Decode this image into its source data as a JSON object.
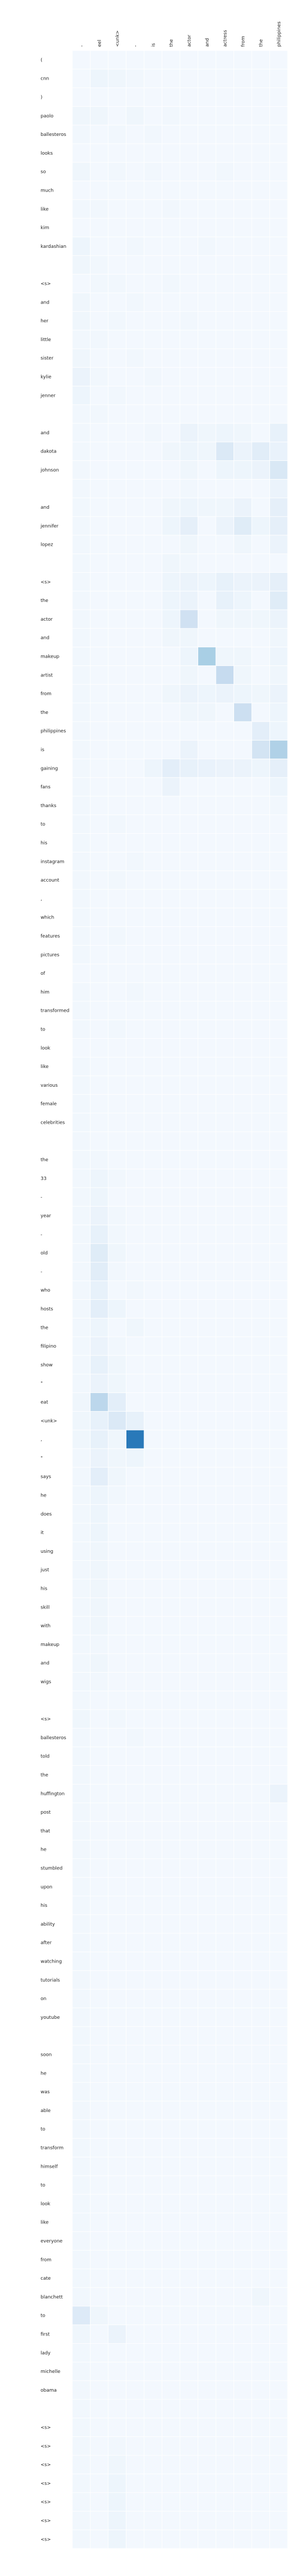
{
  "chart_data": {
    "type": "heatmap",
    "title": "",
    "xlabel": "",
    "ylabel": "",
    "x": [
      "-",
      "eel",
      "<unk>",
      "-",
      "is",
      "the",
      "actor",
      "and",
      "actress",
      "from",
      "the",
      "philippines"
    ],
    "y": [
      "(",
      "cnn",
      ")",
      "paolo",
      "ballesteros",
      "looks",
      "so",
      "much",
      "like",
      "kim",
      "kardashian",
      "",
      "<s>",
      "and",
      "her",
      "little",
      "sister",
      "kylie",
      "jenner",
      "",
      "and",
      "dakota",
      "johnson",
      "",
      "and",
      "jennifer",
      "lopez",
      "",
      "<s>",
      "the",
      "actor",
      "and",
      "makeup",
      "artist",
      "from",
      "the",
      "philippines",
      "is",
      "gaining",
      "fans",
      "thanks",
      "to",
      "his",
      "instagram",
      "account",
      ",",
      "which",
      "features",
      "pictures",
      "of",
      "him",
      "transformed",
      "to",
      "look",
      "like",
      "various",
      "female",
      "celebrities",
      "",
      "the",
      "33",
      "-",
      "year",
      "-",
      "old",
      "-",
      "who",
      "hosts",
      "the",
      "filipino",
      "show",
      "\"",
      "eat",
      "<unk>",
      ",",
      "\"",
      "says",
      "he",
      "does",
      "it",
      "using",
      "just",
      "his",
      "skill",
      "with",
      "makeup",
      "and",
      "wigs",
      "",
      "<s>",
      "ballesteros",
      "told",
      "the",
      "huffington",
      "post",
      "that",
      "he",
      "stumbled",
      "upon",
      "his",
      "ability",
      "after",
      "watching",
      "tutorials",
      "on",
      "youtube",
      "",
      "soon",
      "he",
      "was",
      "able",
      "to",
      "transform",
      "himself",
      "to",
      "look",
      "like",
      "everyone",
      "from",
      "cate",
      "blanchett",
      "to",
      "first",
      "lady",
      "michelle",
      "obama",
      "",
      "<s>",
      "<s>",
      "<s>",
      "<s>",
      "<s>",
      "<s>",
      "<s>"
    ],
    "cells": [
      [
        1,
        1,
        0.05
      ],
      [
        1,
        2,
        0.04
      ],
      [
        1,
        3,
        0.03
      ],
      [
        3,
        0,
        0.04
      ],
      [
        3,
        1,
        0.04
      ],
      [
        3,
        3,
        0.04
      ],
      [
        3,
        5,
        0.03
      ],
      [
        4,
        0,
        0.03
      ],
      [
        4,
        2,
        0.03
      ],
      [
        4,
        4,
        0.03
      ],
      [
        6,
        0,
        0.04
      ],
      [
        6,
        2,
        0.03
      ],
      [
        6,
        4,
        0.03
      ],
      [
        6,
        8,
        0.03
      ],
      [
        8,
        0,
        0.03
      ],
      [
        8,
        1,
        0.03
      ],
      [
        8,
        5,
        0.03
      ],
      [
        10,
        0,
        0.05
      ],
      [
        10,
        3,
        0.03
      ],
      [
        10,
        7,
        0.03
      ],
      [
        11,
        0,
        0.04
      ],
      [
        11,
        1,
        0.03
      ],
      [
        12,
        1,
        0.03
      ],
      [
        12,
        2,
        0.03
      ],
      [
        12,
        5,
        0.03
      ],
      [
        13,
        0,
        0.04
      ],
      [
        13,
        3,
        0.03
      ],
      [
        14,
        0,
        0.04
      ],
      [
        14,
        2,
        0.03
      ],
      [
        14,
        6,
        0.03
      ],
      [
        15,
        0,
        0.03
      ],
      [
        15,
        1,
        0.03
      ],
      [
        16,
        0,
        0.04
      ],
      [
        16,
        3,
        0.03
      ],
      [
        17,
        0,
        0.06
      ],
      [
        17,
        1,
        0.03
      ],
      [
        17,
        4,
        0.03
      ],
      [
        18,
        0,
        0.05
      ],
      [
        18,
        2,
        0.03
      ],
      [
        19,
        0,
        0.03
      ],
      [
        19,
        1,
        0.03
      ],
      [
        20,
        0,
        0.03
      ],
      [
        20,
        4,
        0.03
      ],
      [
        20,
        6,
        0.06
      ],
      [
        20,
        7,
        0.04
      ],
      [
        20,
        8,
        0.05
      ],
      [
        20,
        9,
        0.04
      ],
      [
        20,
        11,
        0.08
      ],
      [
        21,
        0,
        0.03
      ],
      [
        21,
        5,
        0.04
      ],
      [
        21,
        6,
        0.05
      ],
      [
        21,
        7,
        0.04
      ],
      [
        21,
        8,
        0.14
      ],
      [
        21,
        9,
        0.06
      ],
      [
        21,
        10,
        0.11
      ],
      [
        21,
        11,
        0.07
      ],
      [
        22,
        0,
        0.03
      ],
      [
        22,
        6,
        0.04
      ],
      [
        22,
        8,
        0.05
      ],
      [
        22,
        9,
        0.05
      ],
      [
        22,
        10,
        0.06
      ],
      [
        22,
        11,
        0.15
      ],
      [
        23,
        0,
        0.03
      ],
      [
        23,
        6,
        0.03
      ],
      [
        23,
        11,
        0.06
      ],
      [
        24,
        0,
        0.03
      ],
      [
        24,
        5,
        0.04
      ],
      [
        24,
        6,
        0.05
      ],
      [
        24,
        7,
        0.04
      ],
      [
        24,
        8,
        0.04
      ],
      [
        24,
        9,
        0.06
      ],
      [
        24,
        11,
        0.09
      ],
      [
        25,
        0,
        0.03
      ],
      [
        25,
        5,
        0.05
      ],
      [
        25,
        6,
        0.09
      ],
      [
        25,
        8,
        0.06
      ],
      [
        25,
        9,
        0.12
      ],
      [
        25,
        10,
        0.05
      ],
      [
        25,
        11,
        0.09
      ],
      [
        26,
        0,
        0.03
      ],
      [
        26,
        6,
        0.04
      ],
      [
        26,
        9,
        0.04
      ],
      [
        26,
        11,
        0.06
      ],
      [
        27,
        0,
        0.03
      ],
      [
        27,
        5,
        0.04
      ],
      [
        27,
        6,
        0.03
      ],
      [
        28,
        0,
        0.03
      ],
      [
        28,
        5,
        0.05
      ],
      [
        28,
        6,
        0.06
      ],
      [
        28,
        7,
        0.05
      ],
      [
        28,
        8,
        0.08
      ],
      [
        28,
        9,
        0.06
      ],
      [
        28,
        10,
        0.06
      ],
      [
        28,
        11,
        0.09
      ],
      [
        29,
        0,
        0.03
      ],
      [
        29,
        5,
        0.05
      ],
      [
        29,
        6,
        0.06
      ],
      [
        29,
        8,
        0.08
      ],
      [
        29,
        9,
        0.05
      ],
      [
        29,
        11,
        0.12
      ],
      [
        30,
        0,
        0.03
      ],
      [
        30,
        5,
        0.05
      ],
      [
        30,
        6,
        0.2
      ],
      [
        30,
        8,
        0.04
      ],
      [
        30,
        9,
        0.04
      ],
      [
        30,
        10,
        0.04
      ],
      [
        30,
        11,
        0.06
      ],
      [
        31,
        0,
        0.03
      ],
      [
        31,
        5,
        0.04
      ],
      [
        31,
        6,
        0.04
      ],
      [
        31,
        11,
        0.04
      ],
      [
        32,
        0,
        0.03
      ],
      [
        32,
        6,
        0.05
      ],
      [
        32,
        7,
        0.34
      ],
      [
        32,
        8,
        0.04
      ],
      [
        32,
        9,
        0.04
      ],
      [
        32,
        11,
        0.05
      ],
      [
        33,
        0,
        0.03
      ],
      [
        33,
        6,
        0.04
      ],
      [
        33,
        8,
        0.25
      ],
      [
        33,
        9,
        0.04
      ],
      [
        33,
        11,
        0.04
      ],
      [
        34,
        0,
        0.03
      ],
      [
        34,
        5,
        0.04
      ],
      [
        34,
        6,
        0.06
      ],
      [
        34,
        7,
        0.05
      ],
      [
        34,
        8,
        0.06
      ],
      [
        34,
        9,
        0.05
      ],
      [
        34,
        10,
        0.04
      ],
      [
        34,
        11,
        0.06
      ],
      [
        35,
        0,
        0.03
      ],
      [
        35,
        6,
        0.04
      ],
      [
        35,
        7,
        0.04
      ],
      [
        35,
        9,
        0.22
      ],
      [
        35,
        11,
        0.05
      ],
      [
        36,
        0,
        0.03
      ],
      [
        36,
        10,
        0.1
      ],
      [
        36,
        11,
        0.05
      ],
      [
        37,
        0,
        0.03
      ],
      [
        37,
        6,
        0.06
      ],
      [
        37,
        10,
        0.18
      ],
      [
        37,
        11,
        0.32
      ],
      [
        38,
        0,
        0.03
      ],
      [
        38,
        4,
        0.05
      ],
      [
        38,
        5,
        0.1
      ],
      [
        38,
        6,
        0.08
      ],
      [
        38,
        7,
        0.07
      ],
      [
        38,
        8,
        0.06
      ],
      [
        38,
        9,
        0.06
      ],
      [
        38,
        10,
        0.05
      ],
      [
        38,
        11,
        0.09
      ],
      [
        39,
        0,
        0.03
      ],
      [
        39,
        5,
        0.06
      ],
      [
        39,
        11,
        0.05
      ],
      [
        40,
        0,
        0.03
      ],
      [
        40,
        11,
        0.03
      ],
      [
        41,
        0,
        0.03
      ],
      [
        41,
        2,
        0.03
      ],
      [
        42,
        0,
        0.03
      ],
      [
        43,
        0,
        0.03
      ],
      [
        43,
        3,
        0.03
      ],
      [
        44,
        0,
        0.03
      ],
      [
        44,
        2,
        0.03
      ],
      [
        45,
        0,
        0.03
      ],
      [
        46,
        0,
        0.03
      ],
      [
        47,
        0,
        0.03
      ],
      [
        47,
        2,
        0.03
      ],
      [
        48,
        0,
        0.03
      ],
      [
        50,
        0,
        0.03
      ],
      [
        50,
        3,
        0.03
      ],
      [
        51,
        0,
        0.03
      ],
      [
        52,
        0,
        0.03
      ],
      [
        52,
        2,
        0.03
      ],
      [
        54,
        0,
        0.03
      ],
      [
        55,
        0,
        0.03
      ],
      [
        56,
        0,
        0.03
      ],
      [
        57,
        0,
        0.03
      ],
      [
        58,
        0,
        0.03
      ],
      [
        59,
        0,
        0.03
      ],
      [
        59,
        1,
        0.03
      ],
      [
        60,
        0,
        0.03
      ],
      [
        60,
        1,
        0.05
      ],
      [
        60,
        2,
        0.03
      ],
      [
        61,
        0,
        0.03
      ],
      [
        61,
        1,
        0.05
      ],
      [
        62,
        0,
        0.03
      ],
      [
        62,
        1,
        0.06
      ],
      [
        62,
        2,
        0.03
      ],
      [
        63,
        0,
        0.03
      ],
      [
        63,
        1,
        0.08
      ],
      [
        63,
        2,
        0.03
      ],
      [
        64,
        0,
        0.03
      ],
      [
        64,
        1,
        0.12
      ],
      [
        64,
        2,
        0.04
      ],
      [
        65,
        0,
        0.03
      ],
      [
        65,
        1,
        0.11
      ],
      [
        65,
        2,
        0.03
      ],
      [
        66,
        0,
        0.03
      ],
      [
        66,
        1,
        0.08
      ],
      [
        66,
        3,
        0.03
      ],
      [
        67,
        0,
        0.03
      ],
      [
        67,
        1,
        0.1
      ],
      [
        67,
        2,
        0.05
      ],
      [
        68,
        0,
        0.03
      ],
      [
        68,
        1,
        0.05
      ],
      [
        68,
        3,
        0.04
      ],
      [
        69,
        0,
        0.03
      ],
      [
        69,
        1,
        0.06
      ],
      [
        69,
        2,
        0.03
      ],
      [
        70,
        0,
        0.03
      ],
      [
        70,
        1,
        0.08
      ],
      [
        70,
        2,
        0.04
      ],
      [
        71,
        0,
        0.03
      ],
      [
        71,
        1,
        0.06
      ],
      [
        71,
        2,
        0.04
      ],
      [
        72,
        0,
        0.04
      ],
      [
        72,
        1,
        0.28
      ],
      [
        72,
        2,
        0.1
      ],
      [
        73,
        0,
        0.04
      ],
      [
        73,
        1,
        0.08
      ],
      [
        73,
        2,
        0.14
      ],
      [
        73,
        3,
        0.08
      ],
      [
        74,
        0,
        0.04
      ],
      [
        74,
        1,
        0.08
      ],
      [
        74,
        2,
        0.04
      ],
      [
        74,
        3,
        0.72
      ],
      [
        75,
        0,
        0.03
      ],
      [
        75,
        1,
        0.06
      ],
      [
        75,
        2,
        0.04
      ],
      [
        75,
        3,
        0.05
      ],
      [
        76,
        0,
        0.03
      ],
      [
        76,
        1,
        0.1
      ],
      [
        76,
        2,
        0.04
      ],
      [
        77,
        0,
        0.03
      ],
      [
        77,
        1,
        0.05
      ],
      [
        77,
        2,
        0.03
      ],
      [
        78,
        0,
        0.03
      ],
      [
        78,
        1,
        0.05
      ],
      [
        79,
        0,
        0.03
      ],
      [
        79,
        1,
        0.05
      ],
      [
        80,
        0,
        0.03
      ],
      [
        80,
        1,
        0.04
      ],
      [
        81,
        0,
        0.03
      ],
      [
        81,
        1,
        0.04
      ],
      [
        82,
        0,
        0.03
      ],
      [
        82,
        1,
        0.04
      ],
      [
        83,
        0,
        0.03
      ],
      [
        83,
        1,
        0.04
      ],
      [
        84,
        0,
        0.03
      ],
      [
        84,
        1,
        0.04
      ],
      [
        85,
        0,
        0.03
      ],
      [
        85,
        1,
        0.03
      ],
      [
        86,
        0,
        0.03
      ],
      [
        86,
        1,
        0.04
      ],
      [
        87,
        0,
        0.03
      ],
      [
        87,
        1,
        0.03
      ],
      [
        88,
        0,
        0.03
      ],
      [
        89,
        0,
        0.04
      ],
      [
        89,
        2,
        0.03
      ],
      [
        90,
        0,
        0.03
      ],
      [
        90,
        3,
        0.03
      ],
      [
        91,
        0,
        0.03
      ],
      [
        92,
        0,
        0.03
      ],
      [
        93,
        0,
        0.03
      ],
      [
        93,
        11,
        0.06
      ],
      [
        94,
        0,
        0.03
      ],
      [
        95,
        0,
        0.03
      ],
      [
        96,
        0,
        0.03
      ],
      [
        97,
        0,
        0.03
      ],
      [
        98,
        0,
        0.03
      ],
      [
        99,
        0,
        0.03
      ],
      [
        100,
        0,
        0.03
      ],
      [
        101,
        0,
        0.03
      ],
      [
        102,
        0,
        0.03
      ],
      [
        103,
        0,
        0.03
      ],
      [
        104,
        0,
        0.03
      ],
      [
        105,
        0,
        0.03
      ],
      [
        106,
        0,
        0.03
      ],
      [
        107,
        0,
        0.03
      ],
      [
        108,
        0,
        0.03
      ],
      [
        109,
        0,
        0.03
      ],
      [
        110,
        0,
        0.03
      ],
      [
        111,
        0,
        0.03
      ],
      [
        112,
        0,
        0.03
      ],
      [
        113,
        0,
        0.03
      ],
      [
        114,
        0,
        0.03
      ],
      [
        115,
        0,
        0.03
      ],
      [
        116,
        0,
        0.03
      ],
      [
        117,
        0,
        0.03
      ],
      [
        118,
        0,
        0.03
      ],
      [
        119,
        0,
        0.03
      ],
      [
        120,
        0,
        0.03
      ],
      [
        120,
        10,
        0.04
      ],
      [
        121,
        0,
        0.13
      ],
      [
        121,
        1,
        0.04
      ],
      [
        122,
        0,
        0.04
      ],
      [
        122,
        2,
        0.06
      ],
      [
        123,
        0,
        0.03
      ],
      [
        124,
        0,
        0.03
      ],
      [
        125,
        0,
        0.03
      ],
      [
        126,
        0,
        0.03
      ],
      [
        127,
        0,
        0.03
      ],
      [
        128,
        0,
        0.03
      ],
      [
        128,
        2,
        0.03
      ],
      [
        129,
        0,
        0.03
      ],
      [
        129,
        2,
        0.04
      ],
      [
        130,
        0,
        0.03
      ],
      [
        130,
        2,
        0.05
      ],
      [
        131,
        0,
        0.03
      ],
      [
        131,
        2,
        0.05
      ],
      [
        132,
        0,
        0.03
      ],
      [
        132,
        2,
        0.05
      ],
      [
        133,
        0,
        0.03
      ],
      [
        133,
        2,
        0.05
      ],
      [
        134,
        0,
        0.03
      ],
      [
        134,
        2,
        0.05
      ]
    ]
  }
}
